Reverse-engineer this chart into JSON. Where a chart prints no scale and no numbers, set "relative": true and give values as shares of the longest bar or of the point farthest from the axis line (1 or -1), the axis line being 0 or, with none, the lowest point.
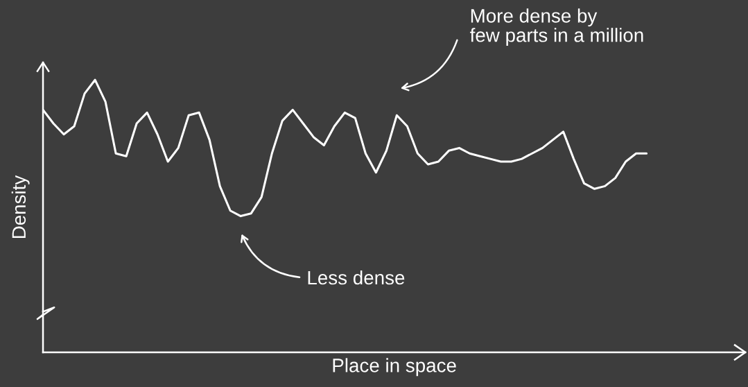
{
  "chart_data": {
    "type": "line",
    "relative": true,
    "xlabel": "Place in space",
    "ylabel": "Density",
    "color": "#ffffff",
    "grid": false,
    "legend": false,
    "tick_labels": false,
    "categories": [
      null,
      null,
      null,
      null,
      null,
      null,
      null,
      null,
      null,
      null,
      null,
      null,
      null,
      null,
      null,
      null,
      null,
      null,
      null,
      null,
      null,
      null,
      null,
      null,
      null,
      null,
      null,
      null,
      null,
      null,
      null,
      null,
      null,
      null,
      null,
      null,
      null,
      null,
      null,
      null,
      null,
      null,
      null,
      null,
      null,
      null,
      null,
      null,
      null,
      null,
      null,
      null,
      null,
      null,
      null,
      null,
      null,
      null,
      null
    ],
    "values": [
      0.89,
      0.84,
      0.8,
      0.83,
      0.95,
      1.0,
      0.92,
      0.73,
      0.72,
      0.84,
      0.88,
      0.8,
      0.7,
      0.75,
      0.87,
      0.88,
      0.78,
      0.61,
      0.52,
      0.5,
      0.51,
      0.57,
      0.73,
      0.85,
      0.89,
      0.84,
      0.79,
      0.76,
      0.83,
      0.88,
      0.86,
      0.73,
      0.66,
      0.74,
      0.87,
      0.83,
      0.73,
      0.69,
      0.7,
      0.74,
      0.75,
      0.73,
      0.72,
      0.71,
      0.7,
      0.7,
      0.71,
      0.73,
      0.75,
      0.78,
      0.81,
      0.71,
      0.62,
      0.6,
      0.61,
      0.64,
      0.7,
      0.73,
      0.73
    ],
    "annotations": [
      "More dense by\nfew parts in a million",
      "Less dense"
    ]
  }
}
